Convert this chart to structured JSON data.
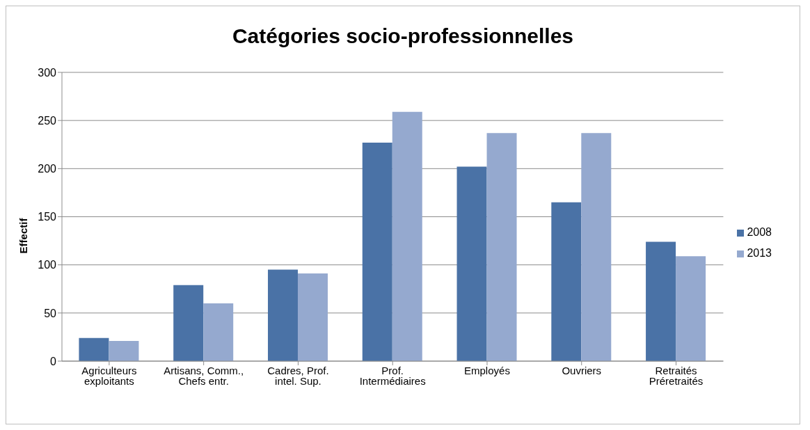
{
  "chart_data": {
    "type": "bar",
    "title": "Catégories socio-professionnelles",
    "ylabel": "Effectif",
    "categories": [
      "Agriculteurs exploitants",
      "Artisans, Comm., Chefs entr.",
      "Cadres, Prof. intel. Sup.",
      "Prof. Intermédiaires",
      "Employés",
      "Ouvriers",
      "Retraités Préretraités"
    ],
    "series": [
      {
        "name": "2008",
        "color": "#4a72a6",
        "values": [
          24,
          79,
          95,
          227,
          202,
          165,
          124
        ]
      },
      {
        "name": "2013",
        "color": "#95a9cf",
        "values": [
          21,
          60,
          91,
          259,
          237,
          237,
          109
        ]
      }
    ],
    "ylim": [
      0,
      300
    ],
    "yticks": [
      0,
      50,
      100,
      150,
      200,
      250,
      300
    ],
    "grid": "y",
    "legend": "right"
  }
}
